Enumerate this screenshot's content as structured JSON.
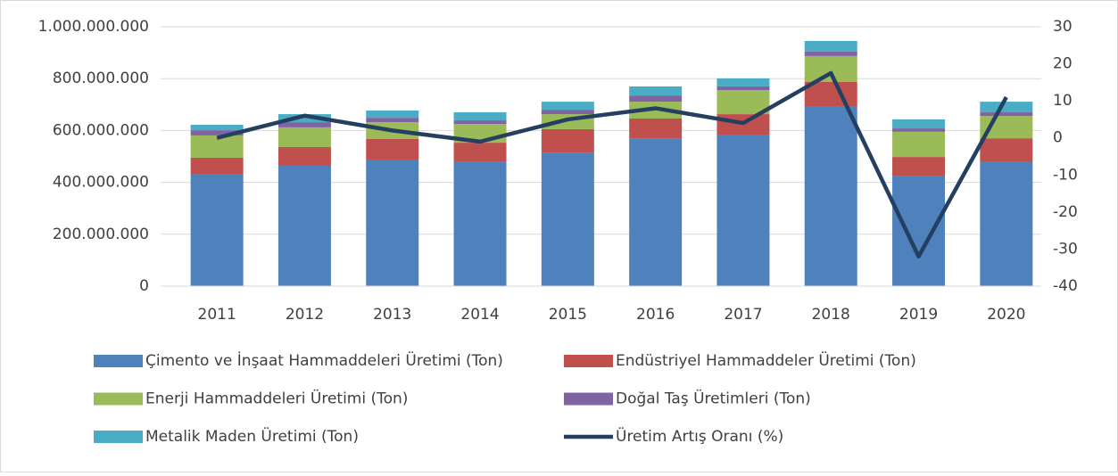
{
  "chart_data": {
    "type": "bar",
    "stacked": true,
    "categories": [
      "2011",
      "2012",
      "2013",
      "2014",
      "2015",
      "2016",
      "2017",
      "2018",
      "2019",
      "2020"
    ],
    "series": [
      {
        "name": "Çimento ve İnşaat Hammaddeleri Üretimi (Ton)",
        "color": "#4f81bd",
        "type": "bar",
        "values": [
          433000000,
          464000000,
          488000000,
          478000000,
          515000000,
          570000000,
          581000000,
          691000000,
          423000000,
          481000000
        ]
      },
      {
        "name": "Endüstriyel Hammaddeler Üretimi (Ton)",
        "color": "#c0504d",
        "type": "bar",
        "values": [
          62000000,
          72000000,
          79000000,
          75000000,
          90000000,
          76000000,
          82000000,
          96000000,
          75000000,
          89000000
        ]
      },
      {
        "name": "Enerji Hammaddeleri Üretimi (Ton)",
        "color": "#9bbb59",
        "type": "bar",
        "values": [
          86000000,
          76000000,
          65000000,
          72000000,
          58000000,
          65000000,
          93000000,
          100000000,
          97000000,
          86000000
        ]
      },
      {
        "name": "Doğal Taş Üretimleri (Ton)",
        "color": "#8064a2",
        "type": "bar",
        "values": [
          20000000,
          20000000,
          17000000,
          14000000,
          17000000,
          24000000,
          14000000,
          17000000,
          13000000,
          14000000
        ]
      },
      {
        "name": "Metalik Maden Üretimi (Ton)",
        "color": "#4bacc6",
        "type": "bar",
        "values": [
          21000000,
          31000000,
          28000000,
          31000000,
          31000000,
          35000000,
          31000000,
          41000000,
          35000000,
          41000000
        ]
      },
      {
        "name": "Üretim Artış Oranı (%)",
        "color": "#243f60",
        "type": "line",
        "axis": "y2",
        "values": [
          0,
          6,
          2,
          -1,
          5,
          8,
          4,
          17.5,
          -32,
          11
        ]
      }
    ],
    "ylim": [
      0,
      1000000000
    ],
    "yticks": [
      0,
      {
        "value": 200000000,
        "label": "200.000.000"
      },
      {
        "value": 400000000,
        "label": "400.000.000"
      },
      {
        "value": 600000000,
        "label": "600.000.000"
      },
      {
        "value": 800000000,
        "label": "800.000.000"
      },
      {
        "value": 1000000000,
        "label": "1.000.000.000"
      }
    ],
    "y2lim": [
      -40,
      30
    ],
    "y2ticks": [
      -40,
      -30,
      -20,
      -10,
      0,
      10,
      20,
      30
    ],
    "grid": true,
    "legend": "bottom"
  }
}
